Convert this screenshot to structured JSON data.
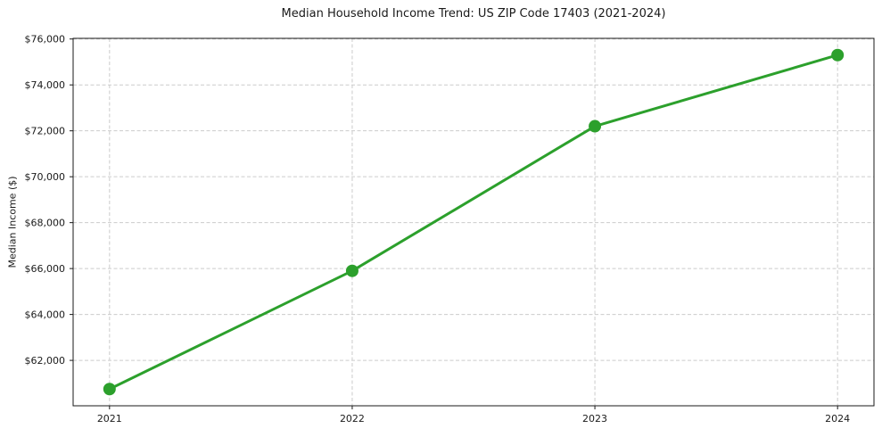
{
  "chart_data": {
    "type": "line",
    "title": "Median Household Income Trend: US ZIP Code 17403 (2021-2024)",
    "xlabel": "",
    "ylabel": "Median Income ($)",
    "categories": [
      2021,
      2022,
      2023,
      2024
    ],
    "x_tick_labels": [
      "2021",
      "2022",
      "2023",
      "2024"
    ],
    "series": [
      {
        "name": "Median Household Income",
        "values": [
          60750,
          65900,
          72200,
          75300
        ]
      }
    ],
    "y_ticks": [
      62000,
      64000,
      66000,
      68000,
      70000,
      72000,
      74000,
      76000
    ],
    "y_tick_labels": [
      "$62,000",
      "$64,000",
      "$66,000",
      "$68,000",
      "$70,000",
      "$72,000",
      "$74,000",
      "$76,000"
    ],
    "ylim": [
      60022,
      76028
    ],
    "grid": true,
    "grid_style": "dashed",
    "legend": "none",
    "colors": {
      "line": "#2ca02c",
      "marker": "#2ca02c",
      "grid": "#cccccc",
      "spine": "#1a1a1a",
      "text": "#1a1a1a",
      "background": "#ffffff"
    }
  }
}
